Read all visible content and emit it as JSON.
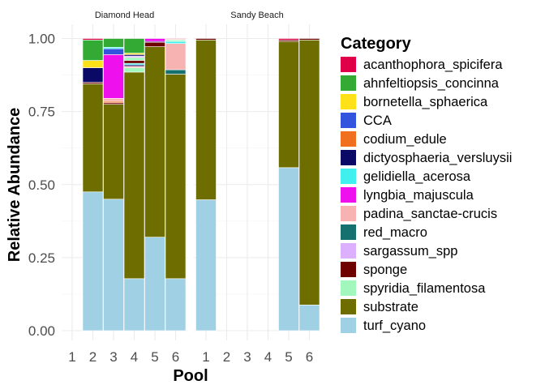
{
  "chart_data": {
    "type": "bar",
    "stacked": true,
    "xlabel": "Pool",
    "ylabel": "Relative Abundance",
    "ylim": [
      0,
      1
    ],
    "y_ticks": [
      "0.00",
      "0.25",
      "0.50",
      "0.75",
      "1.00"
    ],
    "y_tick_values": [
      0,
      0.25,
      0.5,
      0.75,
      1
    ],
    "grid": true,
    "legend": {
      "title": "Category",
      "placement": "right",
      "entries": [
        {
          "name": "acanthophora_spicifera",
          "color": "#e0004a"
        },
        {
          "name": "ahnfeltiopsis_concinna",
          "color": "#33aa33"
        },
        {
          "name": "bornetella_sphaerica",
          "color": "#ffe11a"
        },
        {
          "name": "CCA",
          "color": "#3355dd"
        },
        {
          "name": "codium_edule",
          "color": "#f07020"
        },
        {
          "name": "dictyosphaeria_versluysii",
          "color": "#0a0a66"
        },
        {
          "name": "gelidiella_acerosa",
          "color": "#40f0ee"
        },
        {
          "name": "lyngbia_majuscula",
          "color": "#ee11ee"
        },
        {
          "name": "padina_sanctae-crucis",
          "color": "#f7b2b2"
        },
        {
          "name": "red_macro",
          "color": "#157070"
        },
        {
          "name": "sargassum_spp",
          "color": "#dcb0ff"
        },
        {
          "name": "sponge",
          "color": "#6e0000"
        },
        {
          "name": "spyridia_filamentosa",
          "color": "#a2f7bd"
        },
        {
          "name": "substrate",
          "color": "#6e6e00"
        },
        {
          "name": "turf_cyano",
          "color": "#9fd0e3"
        }
      ]
    },
    "facets": [
      {
        "name": "Diamond Head",
        "x": [
          "1",
          "2",
          "3",
          "4",
          "5",
          "6"
        ],
        "bars": [
          {
            "pool": "1",
            "segments": []
          },
          {
            "pool": "2",
            "segments": [
              {
                "category": "turf_cyano",
                "value": 0.475
              },
              {
                "category": "substrate",
                "value": 0.37
              },
              {
                "category": "sponge",
                "value": 0.005
              },
              {
                "category": "dictyosphaeria_versluysii",
                "value": 0.05
              },
              {
                "category": "bornetella_sphaerica",
                "value": 0.025
              },
              {
                "category": "ahnfeltiopsis_concinna",
                "value": 0.07
              },
              {
                "category": "acanthophora_spicifera",
                "value": 0.005
              }
            ]
          },
          {
            "pool": "3",
            "segments": [
              {
                "category": "turf_cyano",
                "value": 0.45
              },
              {
                "category": "substrate",
                "value": 0.325
              },
              {
                "category": "sponge",
                "value": 0.005
              },
              {
                "category": "codium_edule",
                "value": 0.005
              },
              {
                "category": "padina_sanctae-crucis",
                "value": 0.01
              },
              {
                "category": "lyngbia_majuscula",
                "value": 0.15
              },
              {
                "category": "CCA",
                "value": 0.02
              },
              {
                "category": "gelidiella_acerosa",
                "value": 0.005
              },
              {
                "category": "ahnfeltiopsis_concinna",
                "value": 0.03
              }
            ]
          },
          {
            "pool": "4",
            "segments": [
              {
                "category": "turf_cyano",
                "value": 0.178
              },
              {
                "category": "substrate",
                "value": 0.707
              },
              {
                "category": "spyridia_filamentosa",
                "value": 0.015
              },
              {
                "category": "padina_sanctae-crucis",
                "value": 0.005
              },
              {
                "category": "dictyosphaeria_versluysii",
                "value": 0.005
              },
              {
                "category": "gelidiella_acerosa",
                "value": 0.005
              },
              {
                "category": "sponge",
                "value": 0.01
              },
              {
                "category": "spyridia_filamentosa",
                "value": 0.01
              },
              {
                "category": "sargassum_spp",
                "value": 0.005
              },
              {
                "category": "dictyosphaeria_versluysii",
                "value": 0.005
              },
              {
                "category": "bornetella_sphaerica",
                "value": 0.005
              },
              {
                "category": "ahnfeltiopsis_concinna",
                "value": 0.05
              }
            ]
          },
          {
            "pool": "5",
            "segments": [
              {
                "category": "turf_cyano",
                "value": 0.32
              },
              {
                "category": "substrate",
                "value": 0.652
              },
              {
                "category": "sponge",
                "value": 0.015
              },
              {
                "category": "dictyosphaeria_versluysii",
                "value": 0.003
              },
              {
                "category": "lyngbia_majuscula",
                "value": 0.01
              }
            ]
          },
          {
            "pool": "6",
            "segments": [
              {
                "category": "turf_cyano",
                "value": 0.178
              },
              {
                "category": "substrate",
                "value": 0.7
              },
              {
                "category": "red_macro",
                "value": 0.015
              },
              {
                "category": "padina_sanctae-crucis",
                "value": 0.09
              },
              {
                "category": "gelidiella_acerosa",
                "value": 0.007
              },
              {
                "category": "spyridia_filamentosa",
                "value": 0.005
              },
              {
                "category": "padina_sanctae-crucis",
                "value": 0.003
              },
              {
                "category": "acanthophora_spicifera",
                "value": 0.002
              }
            ]
          }
        ]
      },
      {
        "name": "Sandy Beach",
        "x": [
          "1",
          "2",
          "3",
          "4",
          "5",
          "6"
        ],
        "bars": [
          {
            "pool": "1",
            "segments": [
              {
                "category": "turf_cyano",
                "value": 0.448
              },
              {
                "category": "substrate",
                "value": 0.547
              },
              {
                "category": "sponge",
                "value": 0.005
              }
            ]
          },
          {
            "pool": "2",
            "segments": []
          },
          {
            "pool": "3",
            "segments": []
          },
          {
            "pool": "4",
            "segments": []
          },
          {
            "pool": "5",
            "segments": [
              {
                "category": "turf_cyano",
                "value": 0.558
              },
              {
                "category": "substrate",
                "value": 0.432
              },
              {
                "category": "sponge",
                "value": 0.005
              },
              {
                "category": "acanthophora_spicifera",
                "value": 0.005
              }
            ]
          },
          {
            "pool": "6",
            "segments": [
              {
                "category": "turf_cyano",
                "value": 0.088
              },
              {
                "category": "substrate",
                "value": 0.907
              },
              {
                "category": "sponge",
                "value": 0.005
              }
            ]
          }
        ]
      }
    ]
  }
}
